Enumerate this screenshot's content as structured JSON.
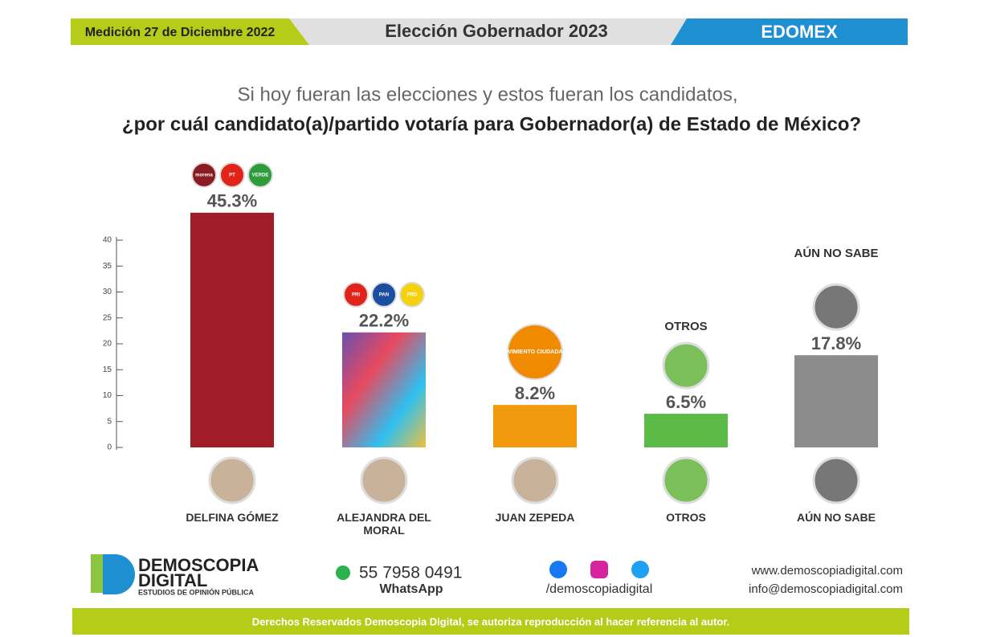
{
  "header": {
    "date": "Medición 27 de Diciembre 2022",
    "title": "Elección Gobernador 2023",
    "region": "EDOMEX"
  },
  "chart_data": {
    "type": "bar",
    "title": "Si hoy fueran las elecciones y estos fueran los candidatos,",
    "subtitle": "¿por cuál candidato(a)/partido votaría para Gobernador(a) de Estado de México?",
    "categories": [
      "DELFINA GÓMEZ",
      "ALEJANDRA DEL MORAL",
      "JUAN ZEPEDA",
      "OTROS",
      "AÚN NO SABE"
    ],
    "values": [
      45.3,
      22.2,
      8.2,
      6.5,
      17.8
    ],
    "value_labels": [
      "45.3%",
      "22.2%",
      "8.2%",
      "6.5%",
      "17.8%"
    ],
    "colors": [
      "#a01d28",
      "#e84a5f",
      "#f29a0e",
      "#5cbb47",
      "#8c8c8c"
    ],
    "annotations": [
      "OTROS",
      "AÚN NO SABE"
    ],
    "logos": [
      [
        "morena",
        "PT",
        "VERDE"
      ],
      [
        "PRI",
        "PAN",
        "PRD"
      ],
      [
        "MOVIMIENTO CIUDADANO"
      ]
    ],
    "ylim": [
      0,
      40
    ],
    "yticks": [
      0,
      5,
      10,
      15,
      20,
      25,
      30,
      35,
      40
    ]
  },
  "footer": {
    "brand": "DEMOSCOPIA",
    "brand2": "DIGITAL",
    "tagline": "ESTUDIOS DE OPINIÓN PÚBLICA",
    "phone": "55 7958 0491",
    "whatsapp": "WhatsApp",
    "social": "/demoscopiadigital",
    "web": "www.demoscopiadigital.com",
    "email": "info@demoscopiadigital.com",
    "rights": "Derechos Reservados Demoscopia Digital, se autoriza reproducción al hacer referencia al autor."
  }
}
